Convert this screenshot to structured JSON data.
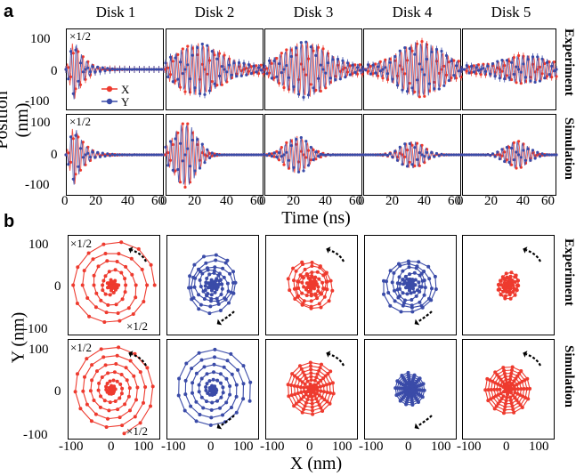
{
  "panel_a": {
    "letter": "a",
    "columns": [
      "Disk 1",
      "Disk 2",
      "Disk 3",
      "Disk 4",
      "Disk 5"
    ],
    "rows": [
      "Experiment",
      "Simulation"
    ],
    "ylabel": "Position (nm)",
    "xlabel": "Time (ns)",
    "yticks": [
      "100",
      "0",
      "-100"
    ],
    "xticks": [
      "0",
      "20",
      "40",
      "60"
    ],
    "scale_note": "×1/2",
    "legend": [
      "X",
      "Y"
    ]
  },
  "panel_b": {
    "letter": "b",
    "rows": [
      "Experiment",
      "Simulation"
    ],
    "ylabel": "Y (nm)",
    "xlabel": "X (nm)",
    "yticks": [
      "100",
      "0",
      "-100"
    ],
    "xticks": [
      "-100",
      "0",
      "100"
    ],
    "scale_note": "×1/2",
    "scale_note_2": "×1/2"
  },
  "colors": {
    "x_series": "#ee3a2e",
    "y_series": "#3a4ba8",
    "arrow": "#000000"
  },
  "chart_data": [
    {
      "type": "line",
      "title": "",
      "xlabel": "Time (ns)",
      "ylabel": "Position (nm)",
      "xlim": [
        0,
        60
      ],
      "ylim": [
        -120,
        120
      ],
      "series_names": [
        "X",
        "Y"
      ],
      "panels": [
        {
          "row": "Experiment",
          "column": "Disk 1",
          "peak_time_ns": 5,
          "amplitude_nm": 95,
          "decay": "fast"
        },
        {
          "row": "Experiment",
          "column": "Disk 2",
          "peak_time_ns": 20,
          "amplitude_nm": 65,
          "decay": "slow"
        },
        {
          "row": "Experiment",
          "column": "Disk 3",
          "peak_time_ns": 25,
          "amplitude_nm": 70,
          "decay": "slow"
        },
        {
          "row": "Experiment",
          "column": "Disk 4",
          "peak_time_ns": 35,
          "amplitude_nm": 70,
          "decay": "slow"
        },
        {
          "row": "Experiment",
          "column": "Disk 5",
          "peak_time_ns": 40,
          "amplitude_nm": 30,
          "decay": "slow"
        },
        {
          "row": "Simulation",
          "column": "Disk 1",
          "peak_time_ns": 5,
          "amplitude_nm": 95,
          "decay": "fast"
        },
        {
          "row": "Simulation",
          "column": "Disk 2",
          "peak_time_ns": 12,
          "amplitude_nm": 95,
          "decay": "medium"
        },
        {
          "row": "Simulation",
          "column": "Disk 3",
          "peak_time_ns": 20,
          "amplitude_nm": 55,
          "decay": "medium"
        },
        {
          "row": "Simulation",
          "column": "Disk 4",
          "peak_time_ns": 30,
          "amplitude_nm": 40,
          "decay": "medium"
        },
        {
          "row": "Simulation",
          "column": "Disk 5",
          "peak_time_ns": 35,
          "amplitude_nm": 40,
          "decay": "medium"
        }
      ]
    },
    {
      "type": "scatter",
      "title": "",
      "xlabel": "X (nm)",
      "ylabel": "Y (nm)",
      "xlim": [
        -120,
        120
      ],
      "ylim": [
        -120,
        120
      ],
      "panels": [
        {
          "row": "Experiment",
          "column": "Disk 1",
          "color": "red",
          "max_radius_nm": 110,
          "turns": 4,
          "core_radius_nm": 15
        },
        {
          "row": "Experiment",
          "column": "Disk 2",
          "color": "blue",
          "max_radius_nm": 70,
          "turns": 5,
          "core_radius_nm": 15
        },
        {
          "row": "Experiment",
          "column": "Disk 3",
          "color": "red",
          "max_radius_nm": 60,
          "turns": 5,
          "core_radius_nm": 15
        },
        {
          "row": "Experiment",
          "column": "Disk 4",
          "color": "blue",
          "max_radius_nm": 70,
          "turns": 5,
          "core_radius_nm": 15
        },
        {
          "row": "Experiment",
          "column": "Disk 5",
          "color": "red",
          "max_radius_nm": 30,
          "turns": 5,
          "core_radius_nm": 8
        },
        {
          "row": "Simulation",
          "column": "Disk 1",
          "color": "red",
          "max_radius_nm": 110,
          "turns": 5,
          "core_radius_nm": 10
        },
        {
          "row": "Simulation",
          "column": "Disk 2",
          "color": "blue",
          "max_radius_nm": 100,
          "turns": 5,
          "core_radius_nm": 10
        },
        {
          "row": "Simulation",
          "column": "Disk 3",
          "color": "red",
          "max_radius_nm": 65,
          "turns": 6,
          "core_radius_nm": 15
        },
        {
          "row": "Simulation",
          "column": "Disk 4",
          "color": "blue",
          "max_radius_nm": 40,
          "turns": 6,
          "core_radius_nm": 10
        },
        {
          "row": "Simulation",
          "column": "Disk 5",
          "color": "red",
          "max_radius_nm": 60,
          "turns": 6,
          "core_radius_nm": 15
        }
      ]
    }
  ]
}
